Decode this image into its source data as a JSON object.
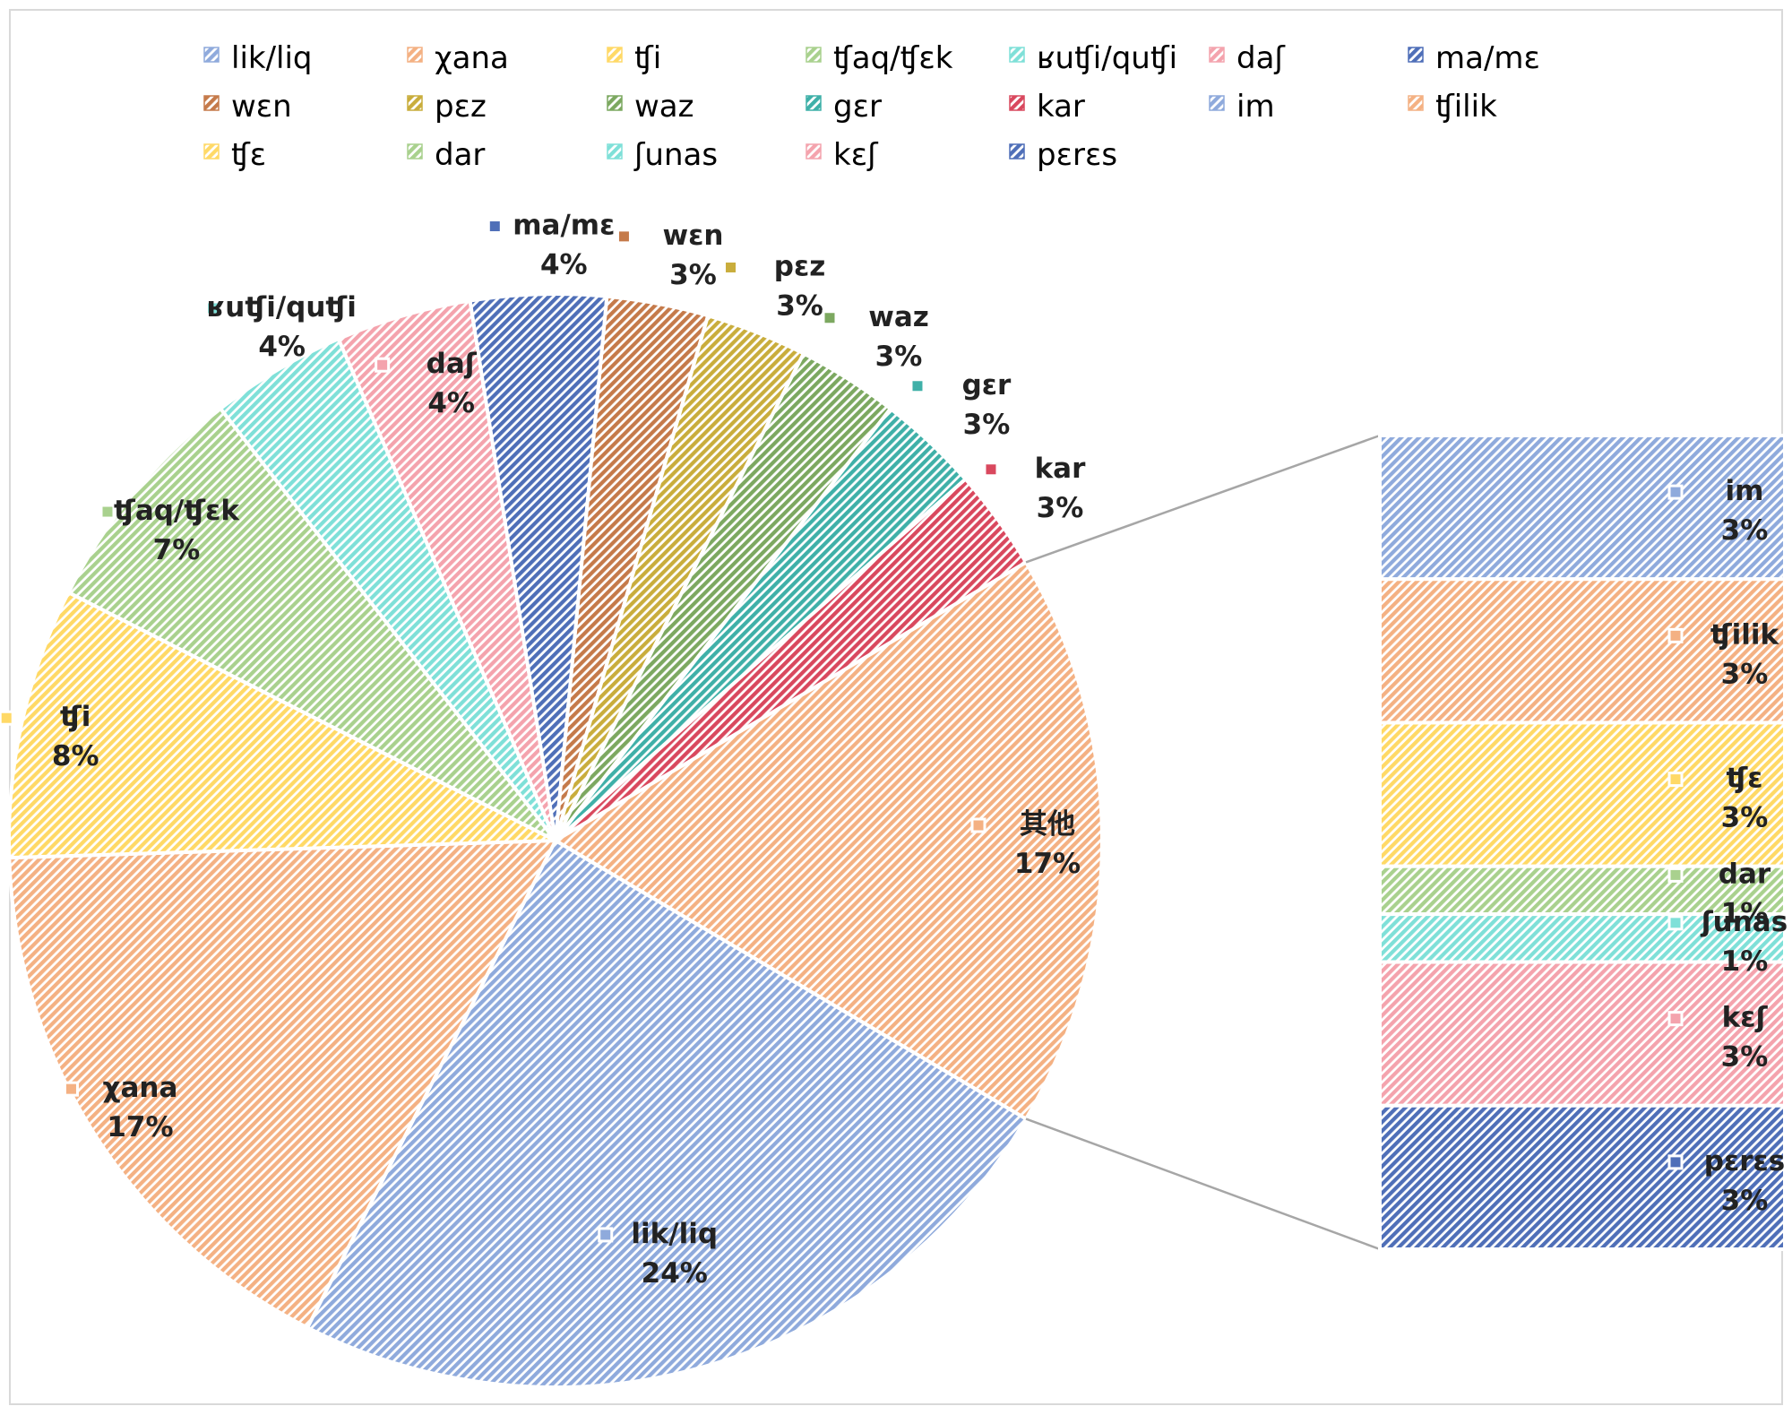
{
  "chart_data": {
    "type": "pie",
    "subtype": "pie-of-pie (bar of pie)",
    "title": "",
    "series": [
      {
        "name": "lik/liq",
        "value": 24,
        "label": "24%",
        "color": "#8faadc",
        "group": "main"
      },
      {
        "name": "χana",
        "value": 17,
        "label": "17%",
        "color": "#f4b183",
        "group": "main"
      },
      {
        "name": "ʧi",
        "value": 8,
        "label": "8%",
        "color": "#ffd966",
        "group": "main"
      },
      {
        "name": "ʧaq/ʧεk",
        "value": 7,
        "label": "7%",
        "color": "#a9d18e",
        "group": "main"
      },
      {
        "name": "ʁuʧi/quʧi",
        "value": 4,
        "label": "4%",
        "color": "#7fe0d8",
        "group": "main"
      },
      {
        "name": "daʃ",
        "value": 4,
        "label": "4%",
        "color": "#f4a3ad",
        "group": "main"
      },
      {
        "name": "ma/mε",
        "value": 4,
        "label": "4%",
        "color": "#4f6fb8",
        "group": "main"
      },
      {
        "name": "wεn",
        "value": 3,
        "label": "3%",
        "color": "#c57a4a",
        "group": "main"
      },
      {
        "name": "pεz",
        "value": 3,
        "label": "3%",
        "color": "#c9ad3c",
        "group": "main"
      },
      {
        "name": "waz",
        "value": 3,
        "label": "3%",
        "color": "#7ca860",
        "group": "main"
      },
      {
        "name": "gεr",
        "value": 3,
        "label": "3%",
        "color": "#3fb0a8",
        "group": "main"
      },
      {
        "name": "kar",
        "value": 3,
        "label": "3%",
        "color": "#d9485e",
        "group": "main"
      },
      {
        "name": "其他",
        "value": 17,
        "label": "17%",
        "color": "#f4b183",
        "group": "other"
      },
      {
        "name": "im",
        "value": 3,
        "label": "3%",
        "color": "#8faadc",
        "group": "secondary"
      },
      {
        "name": "ʧilik",
        "value": 3,
        "label": "3%",
        "color": "#f4b183",
        "group": "secondary"
      },
      {
        "name": "ʧε",
        "value": 3,
        "label": "3%",
        "color": "#ffd966",
        "group": "secondary"
      },
      {
        "name": "dar",
        "value": 1,
        "label": "1%",
        "color": "#a9d18e",
        "group": "secondary"
      },
      {
        "name": "ʃunas",
        "value": 1,
        "label": "1%",
        "color": "#7fe0d8",
        "group": "secondary"
      },
      {
        "name": "kεʃ",
        "value": 3,
        "label": "3%",
        "color": "#f4a3ad",
        "group": "secondary"
      },
      {
        "name": "pεrεs",
        "value": 3,
        "label": "3%",
        "color": "#4f6fb8",
        "group": "secondary"
      }
    ],
    "legend": {
      "placement": "top",
      "entries": [
        "lik/liq",
        "χana",
        "ʧi",
        "ʧaq/ʧεk",
        "ʁuʧi/quʧi",
        "daʃ",
        "ma/mε",
        "wεn",
        "pεz",
        "waz",
        "gεr",
        "kar",
        "im",
        "ʧilik",
        "ʧε",
        "dar",
        "ʃunas",
        "kεʃ",
        "pεrεs"
      ]
    },
    "pattern": "diagonal hatch",
    "grid": false
  }
}
